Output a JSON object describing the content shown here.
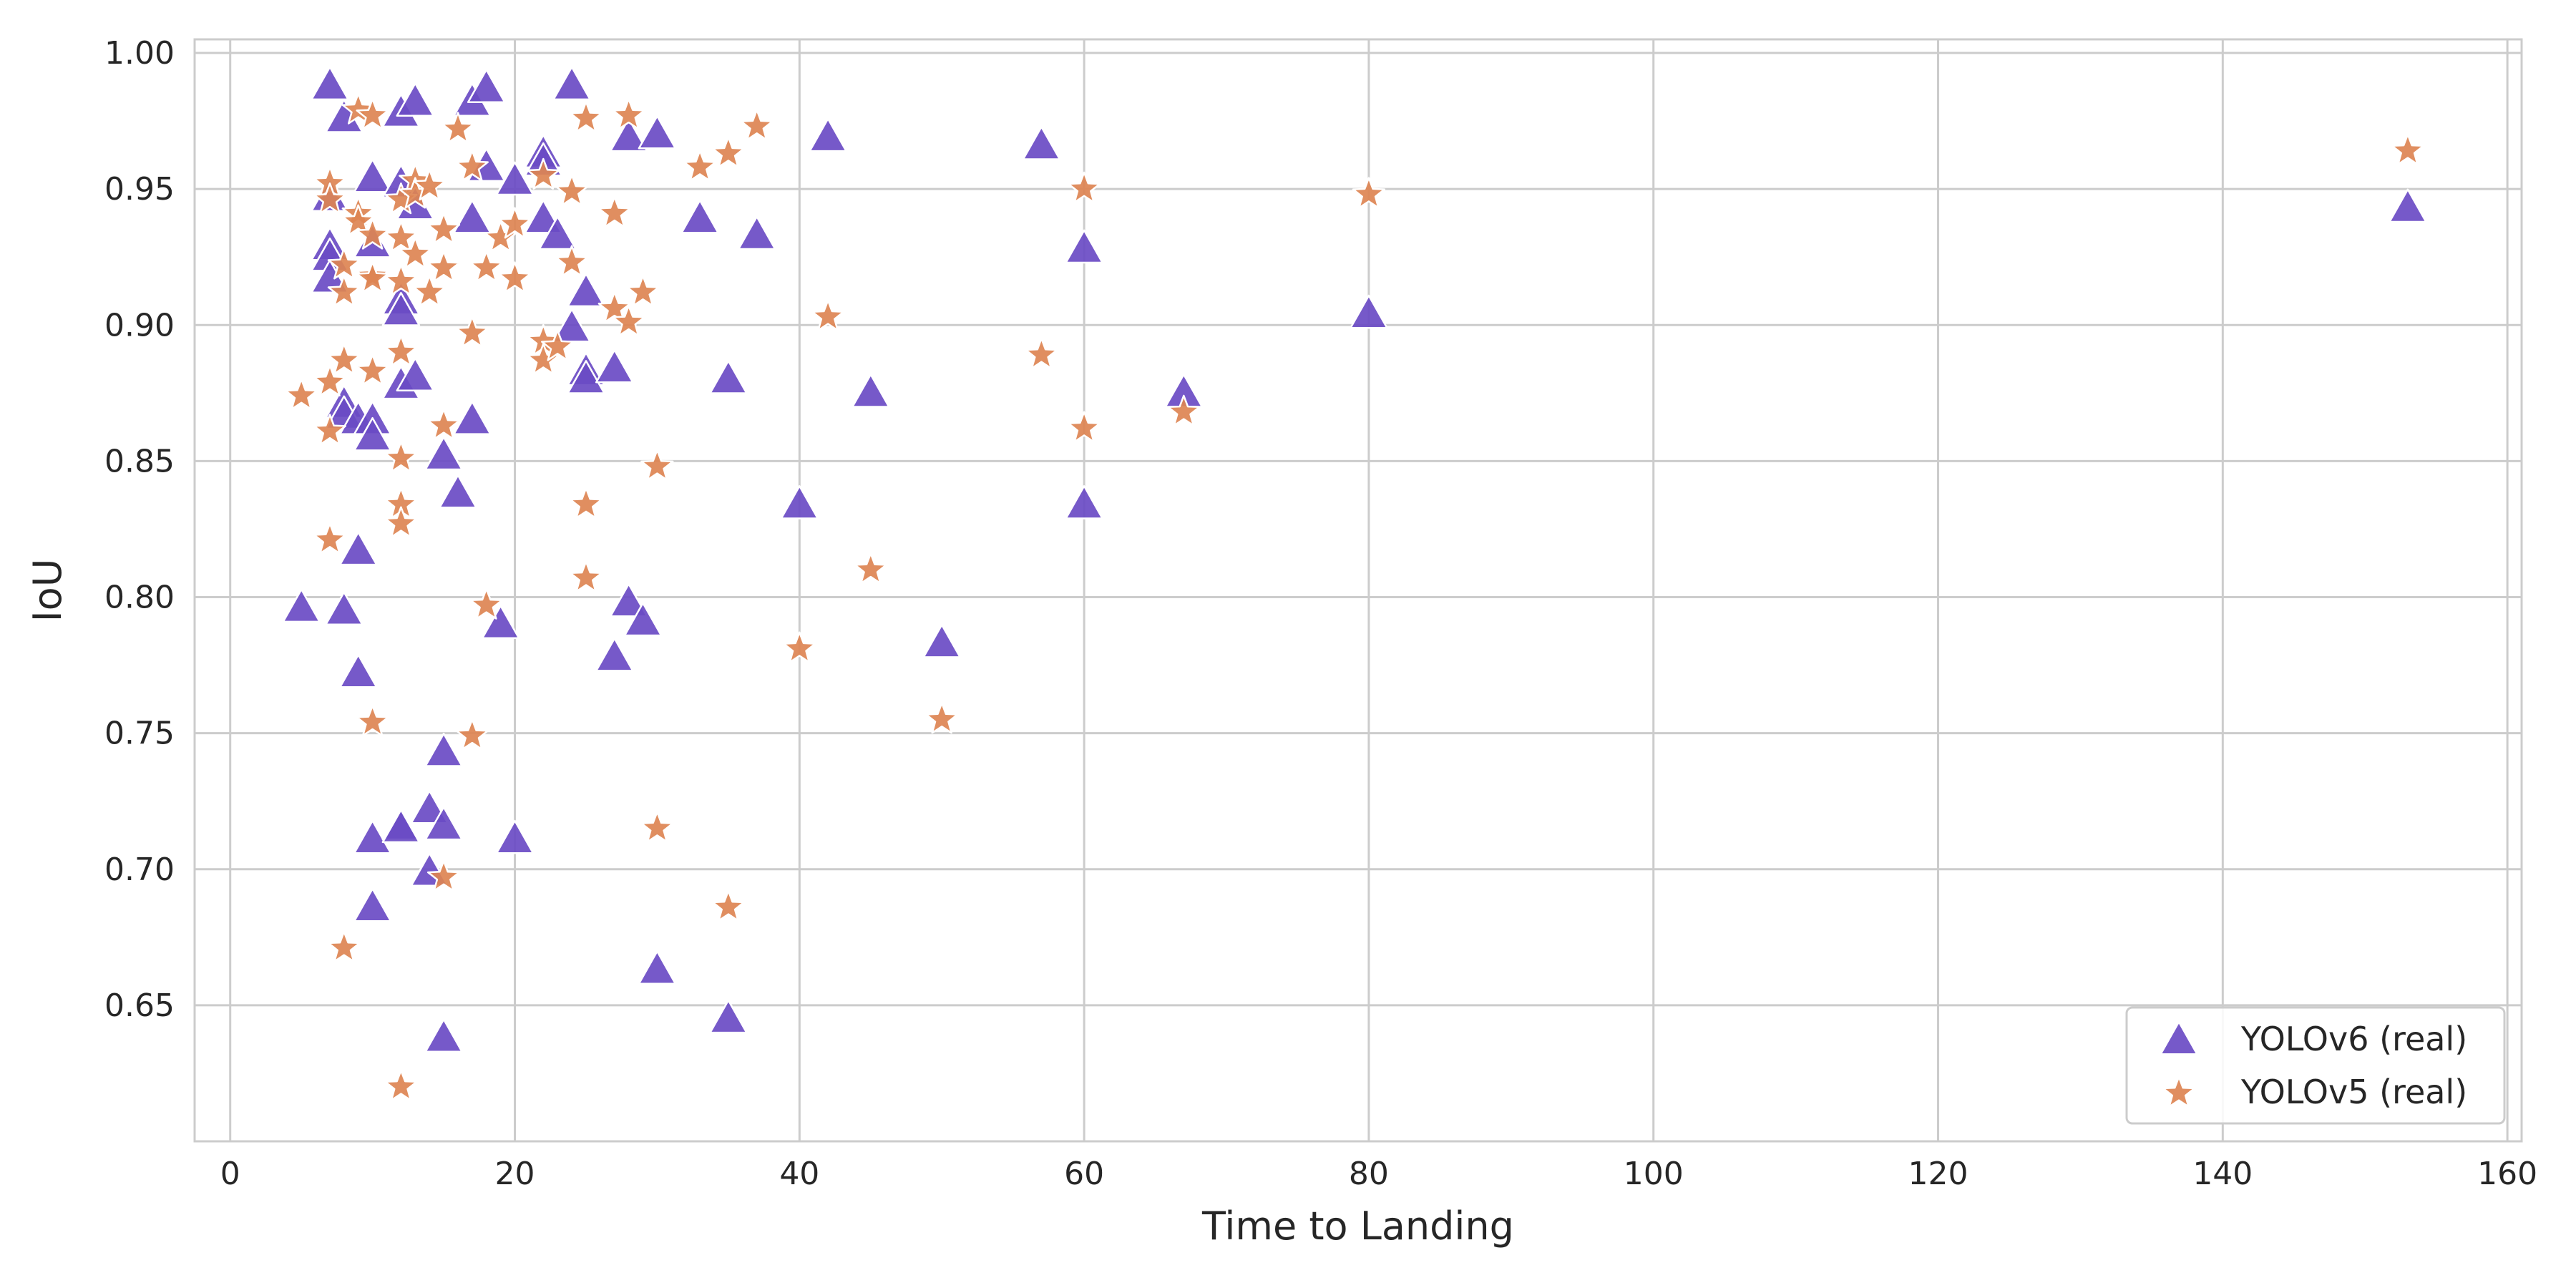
{
  "chart_data": {
    "type": "scatter",
    "title": "",
    "xlabel": "Time to Landing",
    "ylabel": "IoU",
    "xlim": [
      -2.5,
      161
    ],
    "ylim": [
      0.6,
      1.005
    ],
    "xticks": [
      0,
      20,
      40,
      60,
      80,
      100,
      120,
      140,
      160
    ],
    "yticks": [
      0.65,
      0.7,
      0.75,
      0.8,
      0.85,
      0.9,
      0.95,
      1.0
    ],
    "xtick_labels": [
      "0",
      "20",
      "40",
      "60",
      "80",
      "100",
      "120",
      "140",
      "160"
    ],
    "ytick_labels": [
      "0.65",
      "0.70",
      "0.75",
      "0.80",
      "0.85",
      "0.90",
      "0.95",
      "1.00"
    ],
    "grid": true,
    "legend_position": "bottom-right",
    "series": [
      {
        "name": "YOLOv6 (real)",
        "marker": "triangle",
        "color": "#6a4bc4",
        "points": [
          [
            5,
            0.796
          ],
          [
            7,
            0.988
          ],
          [
            7,
            0.947
          ],
          [
            7,
            0.929
          ],
          [
            7,
            0.925
          ],
          [
            7,
            0.917
          ],
          [
            8,
            0.976
          ],
          [
            8,
            0.871
          ],
          [
            8,
            0.867
          ],
          [
            8,
            0.795
          ],
          [
            9,
            0.865
          ],
          [
            9,
            0.817
          ],
          [
            9,
            0.772
          ],
          [
            10,
            0.954
          ],
          [
            10,
            0.93
          ],
          [
            10,
            0.865
          ],
          [
            10,
            0.859
          ],
          [
            10,
            0.711
          ],
          [
            10,
            0.686
          ],
          [
            12,
            0.978
          ],
          [
            12,
            0.952
          ],
          [
            12,
            0.909
          ],
          [
            12,
            0.905
          ],
          [
            12,
            0.878
          ],
          [
            12,
            0.716
          ],
          [
            12,
            0.715
          ],
          [
            13,
            0.982
          ],
          [
            13,
            0.944
          ],
          [
            13,
            0.881
          ],
          [
            14,
            0.722
          ],
          [
            14,
            0.699
          ],
          [
            15,
            0.852
          ],
          [
            15,
            0.743
          ],
          [
            15,
            0.716
          ],
          [
            15,
            0.638
          ],
          [
            16,
            0.838
          ],
          [
            17,
            0.982
          ],
          [
            17,
            0.939
          ],
          [
            17,
            0.865
          ],
          [
            18,
            0.987
          ],
          [
            18,
            0.958
          ],
          [
            19,
            0.79
          ],
          [
            20,
            0.953
          ],
          [
            20,
            0.711
          ],
          [
            22,
            0.963
          ],
          [
            22,
            0.96
          ],
          [
            22,
            0.939
          ],
          [
            23,
            0.933
          ],
          [
            24,
            0.988
          ],
          [
            24,
            0.899
          ],
          [
            25,
            0.912
          ],
          [
            25,
            0.883
          ],
          [
            25,
            0.88
          ],
          [
            27,
            0.884
          ],
          [
            27,
            0.778
          ],
          [
            28,
            0.969
          ],
          [
            28,
            0.798
          ],
          [
            29,
            0.791
          ],
          [
            30,
            0.97
          ],
          [
            30,
            0.663
          ],
          [
            33,
            0.939
          ],
          [
            35,
            0.88
          ],
          [
            35,
            0.645
          ],
          [
            37,
            0.933
          ],
          [
            40,
            0.834
          ],
          [
            42,
            0.969
          ],
          [
            45,
            0.875
          ],
          [
            50,
            0.783
          ],
          [
            57,
            0.966
          ],
          [
            60,
            0.928
          ],
          [
            60,
            0.834
          ],
          [
            67,
            0.875
          ],
          [
            80,
            0.904
          ],
          [
            153,
            0.943
          ]
        ]
      },
      {
        "name": "YOLOv5 (real)",
        "marker": "star",
        "color": "#dd8452",
        "points": [
          [
            5,
            0.874
          ],
          [
            7,
            0.952
          ],
          [
            7,
            0.946
          ],
          [
            7,
            0.879
          ],
          [
            7,
            0.861
          ],
          [
            7,
            0.821
          ],
          [
            8,
            0.922
          ],
          [
            8,
            0.912
          ],
          [
            8,
            0.887
          ],
          [
            8,
            0.671
          ],
          [
            9,
            0.979
          ],
          [
            9,
            0.941
          ],
          [
            9,
            0.938
          ],
          [
            10,
            0.977
          ],
          [
            10,
            0.933
          ],
          [
            10,
            0.918
          ],
          [
            10,
            0.917
          ],
          [
            10,
            0.883
          ],
          [
            10,
            0.754
          ],
          [
            12,
            0.946
          ],
          [
            12,
            0.932
          ],
          [
            12,
            0.916
          ],
          [
            12,
            0.89
          ],
          [
            12,
            0.851
          ],
          [
            12,
            0.834
          ],
          [
            12,
            0.827
          ],
          [
            12,
            0.62
          ],
          [
            13,
            0.953
          ],
          [
            13,
            0.948
          ],
          [
            13,
            0.926
          ],
          [
            14,
            0.951
          ],
          [
            14,
            0.912
          ],
          [
            15,
            0.935
          ],
          [
            15,
            0.921
          ],
          [
            15,
            0.863
          ],
          [
            15,
            0.697
          ],
          [
            16,
            0.972
          ],
          [
            17,
            0.958
          ],
          [
            17,
            0.897
          ],
          [
            17,
            0.749
          ],
          [
            18,
            0.921
          ],
          [
            18,
            0.797
          ],
          [
            19,
            0.932
          ],
          [
            20,
            0.937
          ],
          [
            20,
            0.917
          ],
          [
            22,
            0.955
          ],
          [
            22,
            0.894
          ],
          [
            22,
            0.887
          ],
          [
            23,
            0.892
          ],
          [
            24,
            0.949
          ],
          [
            24,
            0.923
          ],
          [
            25,
            0.976
          ],
          [
            25,
            0.834
          ],
          [
            25,
            0.807
          ],
          [
            27,
            0.941
          ],
          [
            27,
            0.906
          ],
          [
            28,
            0.977
          ],
          [
            28,
            0.901
          ],
          [
            29,
            0.912
          ],
          [
            30,
            0.848
          ],
          [
            30,
            0.715
          ],
          [
            33,
            0.958
          ],
          [
            35,
            0.963
          ],
          [
            35,
            0.686
          ],
          [
            37,
            0.973
          ],
          [
            40,
            0.781
          ],
          [
            42,
            0.903
          ],
          [
            45,
            0.81
          ],
          [
            50,
            0.755
          ],
          [
            57,
            0.889
          ],
          [
            60,
            0.95
          ],
          [
            60,
            0.862
          ],
          [
            67,
            0.868
          ],
          [
            80,
            0.948
          ],
          [
            153,
            0.964
          ]
        ]
      }
    ]
  }
}
